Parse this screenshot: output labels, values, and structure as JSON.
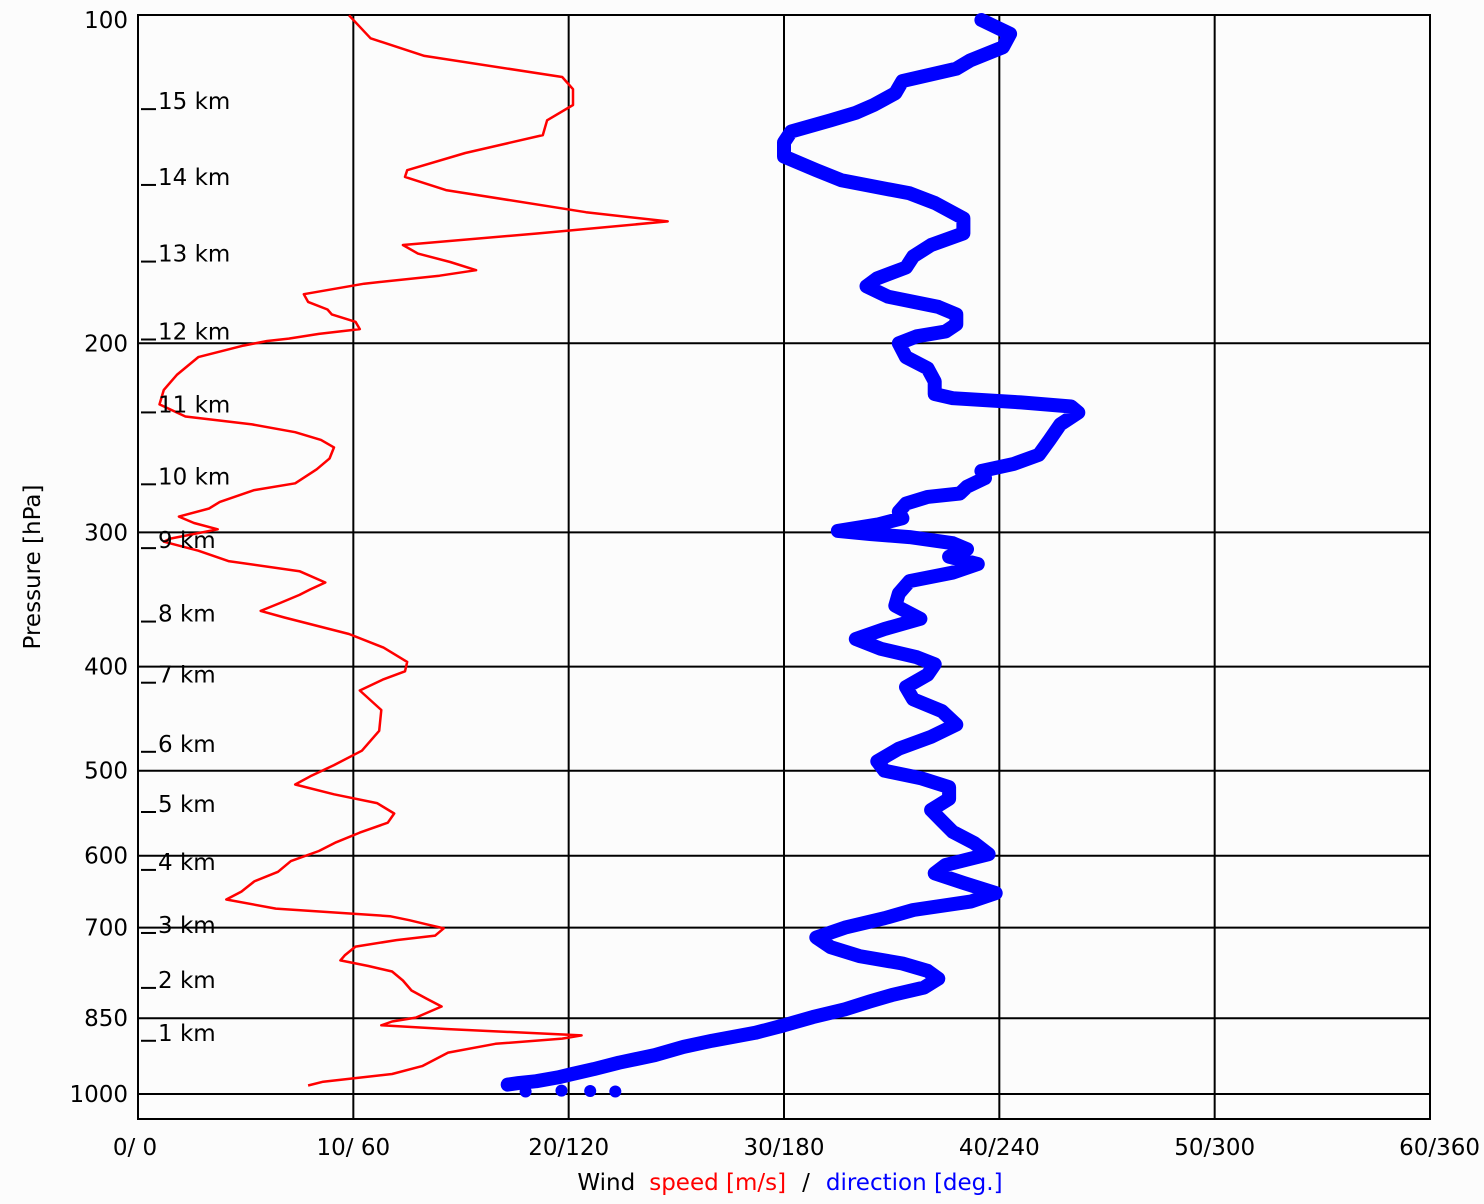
{
  "chart_data": {
    "type": "line",
    "title": "",
    "ylabel": "Pressure [hPa]",
    "y_scale": "log",
    "y_inverted": true,
    "ylim": [
      1000,
      100
    ],
    "xlim": [
      0,
      60
    ],
    "pressure_ticks": [
      "100",
      "200",
      "300",
      "400",
      "500",
      "600",
      "700",
      "850",
      "1000"
    ],
    "x_tick_labels": [
      "0/ 0",
      "10/ 60",
      "20/120",
      "30/180",
      "40/240",
      "50/300",
      "60/360"
    ],
    "xlabel_parts": {
      "wind": "Wind",
      "speed": "speed [m/s]",
      "sep": "/",
      "direction": "direction [deg.]"
    },
    "height_labels": [
      {
        "label": "1 km",
        "p": 877
      },
      {
        "label": "2 km",
        "p": 783
      },
      {
        "label": "3 km",
        "p": 696
      },
      {
        "label": "4 km",
        "p": 608
      },
      {
        "label": "5 km",
        "p": 537
      },
      {
        "label": "6 km",
        "p": 472
      },
      {
        "label": "7 km",
        "p": 407
      },
      {
        "label": "8 km",
        "p": 357
      },
      {
        "label": "9 km",
        "p": 305
      },
      {
        "label": "10 km",
        "p": 266
      },
      {
        "label": "11 km",
        "p": 228
      },
      {
        "label": "12 km",
        "p": 195
      },
      {
        "label": "13 km",
        "p": 165
      },
      {
        "label": "14 km",
        "p": 140
      },
      {
        "label": "15 km",
        "p": 119
      }
    ],
    "grid": true,
    "colors": {
      "speed": "#ff0000",
      "direction": "#0000ff",
      "axes": "#000000"
    },
    "series": [
      {
        "name": "speed [m/s]",
        "units": "m/s",
        "points": [
          [
            9.8,
            99
          ],
          [
            10.8,
            104
          ],
          [
            13.3,
            108
          ],
          [
            19.7,
            113
          ],
          [
            20.2,
            116
          ],
          [
            20.2,
            120
          ],
          [
            19.0,
            124
          ],
          [
            18.8,
            128
          ],
          [
            15.2,
            133
          ],
          [
            12.5,
            138
          ],
          [
            12.4,
            140
          ],
          [
            14.3,
            144
          ],
          [
            20.8,
            151
          ],
          [
            24.6,
            154
          ],
          [
            18.6,
            158
          ],
          [
            12.3,
            162
          ],
          [
            13.0,
            165
          ],
          [
            14.5,
            168
          ],
          [
            15.7,
            171
          ],
          [
            14.0,
            173
          ],
          [
            10.5,
            176
          ],
          [
            7.7,
            180
          ],
          [
            7.9,
            183
          ],
          [
            8.8,
            186
          ],
          [
            9.0,
            188
          ],
          [
            10.1,
            191
          ],
          [
            10.3,
            194
          ],
          [
            8.4,
            196
          ],
          [
            7.0,
            198
          ],
          [
            6.0,
            199
          ],
          [
            4.9,
            201
          ],
          [
            2.8,
            206
          ],
          [
            1.8,
            214
          ],
          [
            1.2,
            221
          ],
          [
            1.0,
            228
          ],
          [
            2.2,
            234
          ],
          [
            5.3,
            238
          ],
          [
            7.3,
            242
          ],
          [
            8.5,
            246
          ],
          [
            9.1,
            250
          ],
          [
            8.9,
            256
          ],
          [
            8.3,
            262
          ],
          [
            7.3,
            270
          ],
          [
            5.4,
            274
          ],
          [
            3.8,
            281
          ],
          [
            3.3,
            285
          ],
          [
            1.9,
            290
          ],
          [
            2.6,
            294
          ],
          [
            3.7,
            298
          ],
          [
            1.5,
            304
          ],
          [
            1.2,
            306
          ],
          [
            2.8,
            312
          ],
          [
            4.2,
            319
          ],
          [
            7.5,
            326
          ],
          [
            8.7,
            334
          ],
          [
            8.0,
            339
          ],
          [
            7.5,
            343
          ],
          [
            6.6,
            349
          ],
          [
            5.7,
            355
          ],
          [
            6.8,
            360
          ],
          [
            9.8,
            373
          ],
          [
            11.4,
            384
          ],
          [
            12.5,
            396
          ],
          [
            12.4,
            404
          ],
          [
            11.4,
            411
          ],
          [
            10.3,
            421
          ],
          [
            11.3,
            439
          ],
          [
            11.2,
            459
          ],
          [
            10.4,
            479
          ],
          [
            9.1,
            494
          ],
          [
            8.0,
            506
          ],
          [
            7.3,
            515
          ],
          [
            9.1,
            526
          ],
          [
            11.1,
            536
          ],
          [
            11.9,
            548
          ],
          [
            11.6,
            559
          ],
          [
            10.3,
            571
          ],
          [
            9.2,
            583
          ],
          [
            8.4,
            594
          ],
          [
            7.1,
            607
          ],
          [
            6.5,
            621
          ],
          [
            5.4,
            634
          ],
          [
            4.8,
            648
          ],
          [
            4.1,
            659
          ],
          [
            6.4,
            672
          ],
          [
            11.7,
            683
          ],
          [
            12.6,
            689
          ],
          [
            13.4,
            695
          ],
          [
            14.2,
            701
          ],
          [
            13.8,
            712
          ],
          [
            12.0,
            719
          ],
          [
            10.1,
            729
          ],
          [
            9.6,
            743
          ],
          [
            9.4,
            751
          ],
          [
            10.7,
            760
          ],
          [
            11.8,
            769
          ],
          [
            12.3,
            784
          ],
          [
            12.7,
            801
          ],
          [
            13.4,
            815
          ],
          [
            14.1,
            829
          ],
          [
            12.9,
            849
          ],
          [
            11.8,
            856
          ],
          [
            11.3,
            863
          ],
          [
            14.3,
            870
          ],
          [
            20.6,
            882
          ],
          [
            19.7,
            888
          ],
          [
            16.6,
            898
          ],
          [
            14.4,
            915
          ],
          [
            13.2,
            942
          ],
          [
            11.8,
            958
          ],
          [
            10.2,
            966
          ],
          [
            8.6,
            974
          ],
          [
            7.9,
            982
          ]
        ]
      },
      {
        "name": "direction [deg.]",
        "units": "deg.",
        "points": [
          [
            235,
            100
          ],
          [
            243,
            103
          ],
          [
            241,
            106
          ],
          [
            232,
            109
          ],
          [
            228,
            111
          ],
          [
            213,
            114
          ],
          [
            211,
            117
          ],
          [
            205,
            120
          ],
          [
            200,
            122
          ],
          [
            193,
            124
          ],
          [
            182,
            127
          ],
          [
            180,
            130
          ],
          [
            180,
            134
          ],
          [
            189,
            138
          ],
          [
            196,
            141
          ],
          [
            215,
            145
          ],
          [
            222,
            148
          ],
          [
            230,
            153
          ],
          [
            230,
            158
          ],
          [
            221,
            162
          ],
          [
            216,
            166
          ],
          [
            214,
            170
          ],
          [
            206,
            174
          ],
          [
            203,
            177
          ],
          [
            209,
            181
          ],
          [
            223,
            185
          ],
          [
            228,
            188
          ],
          [
            228,
            192
          ],
          [
            225,
            195
          ],
          [
            217,
            197
          ],
          [
            212,
            200
          ],
          [
            214,
            206
          ],
          [
            220,
            211
          ],
          [
            222,
            217
          ],
          [
            222,
            223
          ],
          [
            227,
            225
          ],
          [
            246,
            227
          ],
          [
            260,
            229
          ],
          [
            262,
            232
          ],
          [
            257,
            238
          ],
          [
            254,
            246
          ],
          [
            251,
            254
          ],
          [
            244,
            259
          ],
          [
            235,
            263
          ],
          [
            236,
            267
          ],
          [
            231,
            272
          ],
          [
            229,
            276
          ],
          [
            220,
            278
          ],
          [
            214,
            282
          ],
          [
            212,
            287
          ],
          [
            213,
            291
          ],
          [
            206,
            295
          ],
          [
            195,
            299
          ],
          [
            204,
            301
          ],
          [
            215,
            303
          ],
          [
            227,
            307
          ],
          [
            231,
            311
          ],
          [
            226,
            316
          ],
          [
            234,
            321
          ],
          [
            227,
            327
          ],
          [
            215,
            333
          ],
          [
            212,
            342
          ],
          [
            211,
            351
          ],
          [
            218,
            361
          ],
          [
            208,
            369
          ],
          [
            200,
            377
          ],
          [
            207,
            385
          ],
          [
            217,
            392
          ],
          [
            222,
            398
          ],
          [
            220,
            407
          ],
          [
            214,
            418
          ],
          [
            216,
            429
          ],
          [
            224,
            440
          ],
          [
            228,
            453
          ],
          [
            221,
            465
          ],
          [
            212,
            477
          ],
          [
            206,
            490
          ],
          [
            208,
            500
          ],
          [
            218,
            508
          ],
          [
            226,
            518
          ],
          [
            226,
            531
          ],
          [
            221,
            544
          ],
          [
            224,
            557
          ],
          [
            227,
            570
          ],
          [
            233,
            584
          ],
          [
            237,
            598
          ],
          [
            225,
            612
          ],
          [
            222,
            623
          ],
          [
            230,
            636
          ],
          [
            239,
            650
          ],
          [
            232,
            662
          ],
          [
            216,
            674
          ],
          [
            208,
            686
          ],
          [
            197,
            700
          ],
          [
            189,
            715
          ],
          [
            193,
            730
          ],
          [
            201,
            744
          ],
          [
            213,
            756
          ],
          [
            220,
            768
          ],
          [
            223,
            781
          ],
          [
            219,
            796
          ],
          [
            210,
            809
          ],
          [
            204,
            820
          ],
          [
            197,
            834
          ],
          [
            188,
            848
          ],
          [
            180,
            863
          ],
          [
            172,
            877
          ],
          [
            160,
            892
          ],
          [
            152,
            904
          ],
          [
            144,
            920
          ],
          [
            134,
            935
          ],
          [
            127,
            948
          ],
          [
            121,
            958
          ],
          [
            117,
            965
          ],
          [
            111,
            973
          ],
          [
            106,
            977
          ],
          [
            103,
            980
          ]
        ]
      }
    ]
  }
}
